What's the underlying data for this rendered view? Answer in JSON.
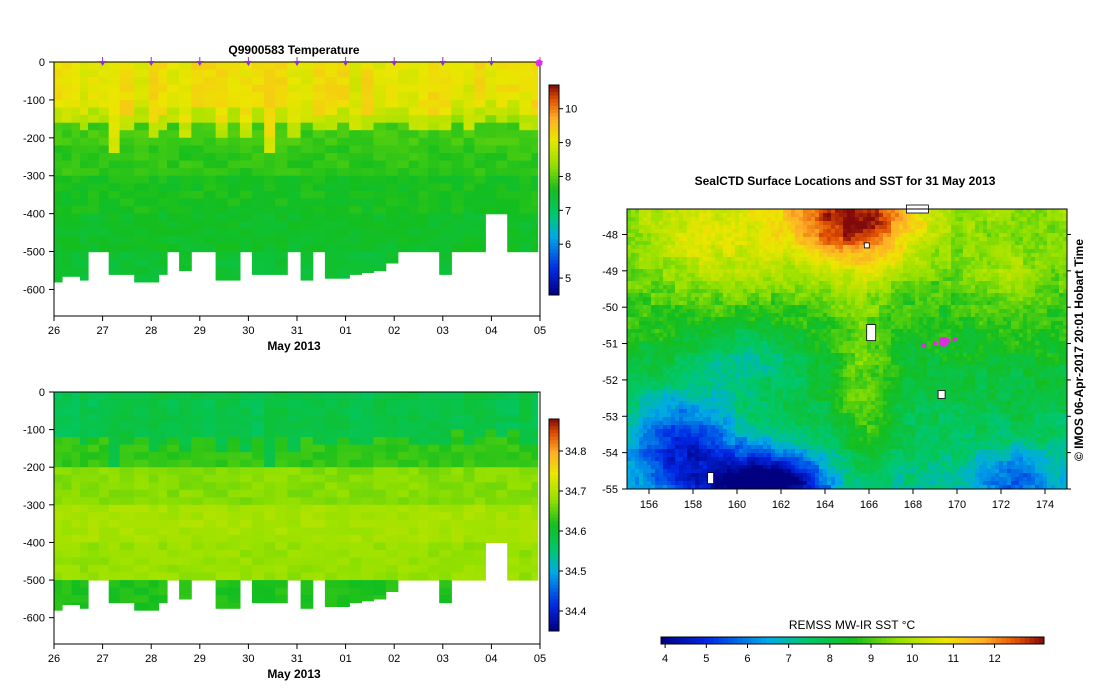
{
  "chart_data": [
    {
      "id": "temperature-section",
      "type": "heatmap",
      "title": "Q9900583  Temperature",
      "xlabel": "May 2013",
      "x_tick_labels": [
        "26",
        "27",
        "28",
        "29",
        "30",
        "31",
        "01",
        "02",
        "03",
        "04",
        "05"
      ],
      "x_range_days": [
        26,
        36
      ],
      "ylim": [
        -670,
        0
      ],
      "y_ticks": [
        0,
        -100,
        -200,
        -300,
        -400,
        -500,
        -600
      ],
      "colorbar": {
        "min": 4.5,
        "max": 10.7,
        "ticks": [
          5,
          6,
          7,
          8,
          9,
          10
        ]
      },
      "layer_values": [
        {
          "depth_to": -100,
          "value": 9.2
        },
        {
          "depth_to": -130,
          "value": 8.7
        },
        {
          "depth_to": -160,
          "value": 8.2
        },
        {
          "depth_to": -220,
          "value": 7.85
        },
        {
          "depth_to": -300,
          "value": 7.75
        },
        {
          "depth_to": -400,
          "value": 7.6
        },
        {
          "depth_to": -500,
          "value": 7.5
        },
        {
          "depth_to": -600,
          "value": 7.4
        }
      ],
      "profile_times": [
        26.08,
        26.25,
        26.47,
        26.6,
        26.8,
        27.05,
        27.2,
        27.5,
        27.8,
        28.1,
        28.2,
        28.45,
        28.7,
        28.95,
        29.2,
        29.45,
        29.7,
        29.95,
        30.2,
        30.45,
        30.65,
        30.95,
        31.2,
        31.45,
        31.7,
        31.95,
        32.2,
        32.45,
        32.7,
        32.95,
        33.2,
        33.4,
        33.6,
        33.8,
        34.05,
        34.3,
        34.55,
        34.75,
        35.0,
        35.2,
        35.45,
        35.7,
        35.95
      ],
      "profile_max_depth": [
        -580,
        -565,
        -565,
        -575,
        -500,
        -500,
        -560,
        -560,
        -580,
        -580,
        -560,
        -500,
        -550,
        -500,
        -500,
        -575,
        -575,
        -500,
        -560,
        -560,
        -560,
        -500,
        -575,
        -500,
        -570,
        -570,
        -560,
        -555,
        -550,
        -530,
        -500,
        -500,
        -500,
        -500,
        -560,
        -500,
        -500,
        -500,
        -400,
        -400,
        -500,
        -500,
        -500
      ],
      "profile_mixed_depth": [
        -110,
        -110,
        -120,
        -130,
        -110,
        -115,
        -190,
        -140,
        -120,
        -150,
        -140,
        -110,
        -150,
        -120,
        -120,
        -160,
        -110,
        -160,
        -120,
        -190,
        -110,
        -150,
        -120,
        -130,
        -125,
        -115,
        -130,
        -130,
        -120,
        -120,
        -120,
        -130,
        -130,
        -130,
        -135,
        -100,
        -140,
        -120,
        -100,
        -120,
        -100,
        -130,
        -130
      ],
      "profile_markers_days": [
        27,
        28,
        29,
        30,
        31,
        32,
        33,
        34,
        35,
        36
      ],
      "profile_marker_color": "#8c2fd4",
      "last_marker_color": "#e02be0"
    },
    {
      "id": "salinity-section",
      "type": "heatmap",
      "title": "",
      "xlabel": "May 2013",
      "x_tick_labels": [
        "26",
        "27",
        "28",
        "29",
        "30",
        "31",
        "01",
        "02",
        "03",
        "04",
        "05"
      ],
      "x_range_days": [
        26,
        36
      ],
      "ylim": [
        -670,
        0
      ],
      "y_ticks": [
        0,
        -100,
        -200,
        -300,
        -400,
        -500,
        -600
      ],
      "colorbar": {
        "min": 34.35,
        "max": 34.88,
        "ticks": [
          34.4,
          34.5,
          34.6,
          34.7,
          34.8
        ]
      },
      "layer_values": [
        {
          "depth_to": -100,
          "value": 34.58
        },
        {
          "depth_to": -200,
          "value": 34.63
        },
        {
          "depth_to": -300,
          "value": 34.67
        },
        {
          "depth_to": -400,
          "value": 34.69
        },
        {
          "depth_to": -500,
          "value": 34.68
        },
        {
          "depth_to": -600,
          "value": 34.62
        }
      ]
    },
    {
      "id": "sst-map",
      "type": "heatmap",
      "title": "SealCTD Surface Locations and SST for 31 May 2013",
      "x_tick_labels": [
        "156",
        "158",
        "160",
        "162",
        "164",
        "166",
        "168",
        "170",
        "172",
        "174"
      ],
      "x_ticks": [
        156,
        158,
        160,
        162,
        164,
        166,
        168,
        170,
        172,
        174
      ],
      "xlim": [
        155,
        175
      ],
      "y_tick_labels": [
        "-48",
        "-49",
        "-50",
        "-51",
        "-52",
        "-53",
        "-54",
        "-55"
      ],
      "y_ticks": [
        -48,
        -49,
        -50,
        -51,
        -52,
        -53,
        -54,
        -55
      ],
      "ylim": [
        -55,
        -47.3
      ],
      "sst_warm_core": {
        "lon": 165.5,
        "lat": -47.5,
        "value": 12.2
      },
      "sst_cold_core": {
        "lon": 161.5,
        "lat": -54.8,
        "value": 4.2
      },
      "seal_track": [
        {
          "lon": 168.5,
          "lat": -51.05
        },
        {
          "lon": 169.0,
          "lat": -51.0
        },
        {
          "lon": 169.4,
          "lat": -50.95
        },
        {
          "lon": 169.6,
          "lat": -50.92
        },
        {
          "lon": 169.9,
          "lat": -50.88
        }
      ],
      "seal_track_color": "#e02be0",
      "side_label": "© IMOS 06-Apr-2017 20:01 Hobart Time",
      "colorbar": {
        "label": "REMSS MW-IR SST °C",
        "min": 3.9,
        "max": 13.2,
        "ticks": [
          4,
          5,
          6,
          7,
          8,
          9,
          10,
          11,
          12
        ]
      }
    }
  ]
}
